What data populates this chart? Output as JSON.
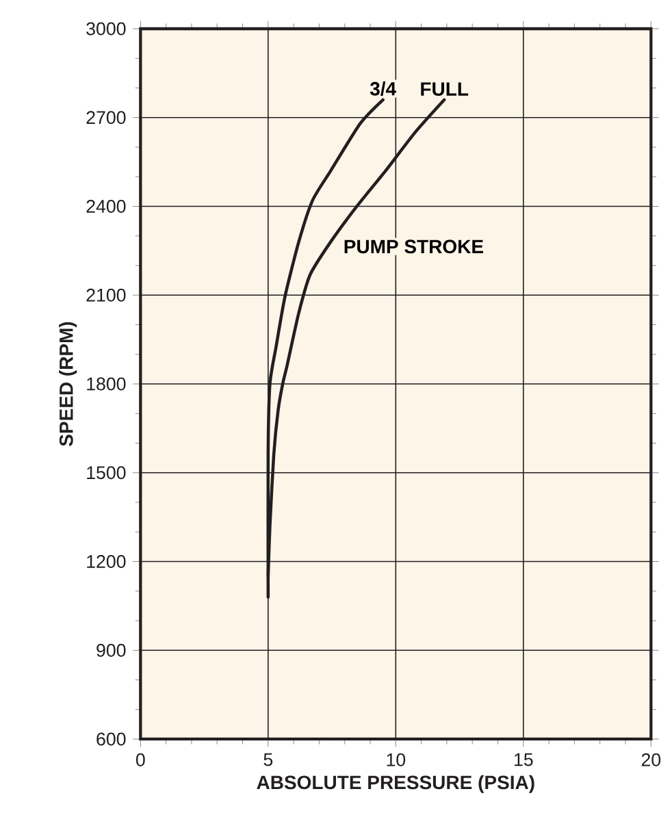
{
  "chart_data": {
    "type": "line",
    "xlabel": "ABSOLUTE PRESSURE (PSIA)",
    "ylabel": "SPEED  (RPM)",
    "annotations": [
      "PUMP STROKE"
    ],
    "series": [
      {
        "name": "3/4",
        "color": "#231f20",
        "x": [
          5.0,
          5.0,
          5.07,
          5.31,
          5.66,
          6.2,
          6.74,
          7.45,
          8.61,
          9.5
        ],
        "values": [
          1080,
          1570,
          1800,
          1925,
          2095,
          2280,
          2420,
          2520,
          2680,
          2760
        ]
      },
      {
        "name": "FULL",
        "color": "#231f20",
        "x": [
          5.0,
          5.07,
          5.22,
          5.39,
          5.57,
          5.75,
          6.2,
          6.65,
          7.45,
          8.43,
          9.6,
          10.76,
          11.9
        ],
        "values": [
          1150,
          1320,
          1560,
          1710,
          1800,
          1865,
          2040,
          2170,
          2280,
          2395,
          2520,
          2650,
          2760
        ]
      }
    ],
    "xlim": [
      0,
      20
    ],
    "ylim": [
      600,
      3000
    ],
    "xticks": [
      0,
      5,
      10,
      15,
      20
    ],
    "yticks": [
      600,
      900,
      1200,
      1500,
      1800,
      2100,
      2400,
      2700,
      3000
    ],
    "grid": true,
    "legend": false,
    "marker": "none",
    "line_style": "solid"
  }
}
